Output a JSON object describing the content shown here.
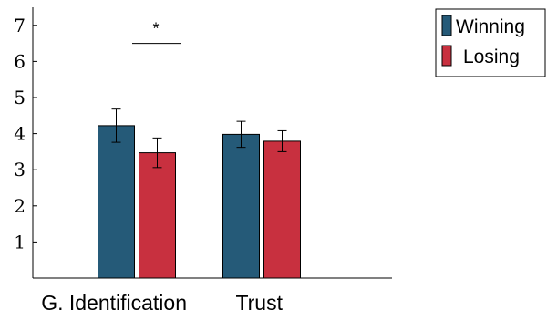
{
  "chart_data": {
    "type": "bar",
    "title": "",
    "xlabel": "",
    "ylabel": "",
    "categories": [
      "G. Identification",
      "Trust"
    ],
    "series": [
      {
        "name": "Winning",
        "values": [
          4.22,
          3.98
        ],
        "error": [
          0.46,
          0.36
        ],
        "color": "#255a78"
      },
      {
        "name": "Losing",
        "values": [
          3.47,
          3.79
        ],
        "error": [
          0.41,
          0.29
        ],
        "color": "#c8303f"
      }
    ],
    "ylim": [
      0,
      7.5
    ],
    "yticks": [
      1,
      2,
      3,
      4,
      5,
      6,
      7
    ],
    "grid": false,
    "legend_position": "outside-top-right",
    "annotations": [
      {
        "text": "*",
        "between": [
          "G. Identification",
          "G. Identification"
        ],
        "y": 6.5
      }
    ]
  }
}
